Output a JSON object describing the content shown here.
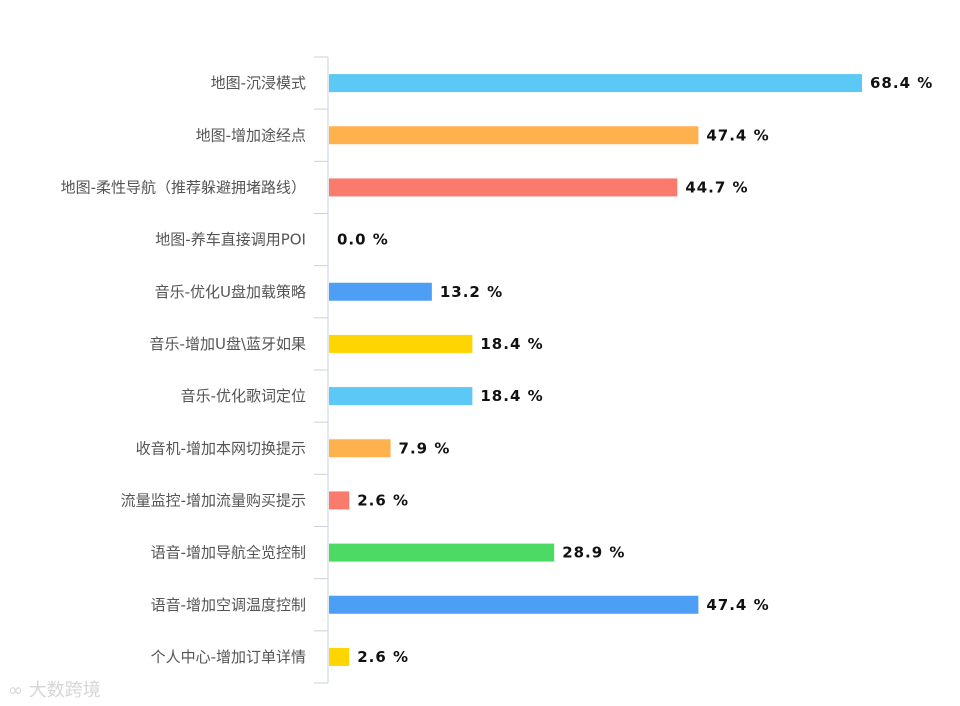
{
  "chart_data": {
    "type": "bar",
    "orientation": "horizontal",
    "title": "",
    "xlabel": "",
    "ylabel": "",
    "xlim": [
      0,
      75
    ],
    "grid": false,
    "categories": [
      "地图-沉浸模式",
      "地图-增加途经点",
      "地图-柔性导航（推荐躲避拥堵路线）",
      "地图-养车直接调用POI",
      "音乐-优化U盘加载策略",
      "音乐-增加U盘\\蓝牙如果",
      "音乐-优化歌词定位",
      "收音机-增加本网切换提示",
      "流量监控-增加流量购买提示",
      "语音-增加导航全览控制",
      "语音-增加空调温度控制",
      "个人中心-增加订单详情"
    ],
    "values": [
      68.4,
      47.4,
      44.7,
      0.0,
      13.2,
      18.4,
      18.4,
      7.9,
      2.6,
      28.9,
      47.4,
      2.6
    ],
    "value_labels": [
      "68.4 %",
      "47.4 %",
      "44.7 %",
      "0.0 %",
      "13.2 %",
      "18.4 %",
      "18.4 %",
      "7.9 %",
      "2.6 %",
      "28.9 %",
      "47.4 %",
      "2.6 %"
    ],
    "bar_colors": [
      "#5bc8f5",
      "#ffb14e",
      "#fa7a6e",
      "#5bc8f5",
      "#4d9ff5",
      "#ffd500",
      "#5bc8f5",
      "#ffb14e",
      "#fa7a6e",
      "#4cd964",
      "#4d9ff5",
      "#ffd500"
    ]
  },
  "watermark": "大数跨境"
}
